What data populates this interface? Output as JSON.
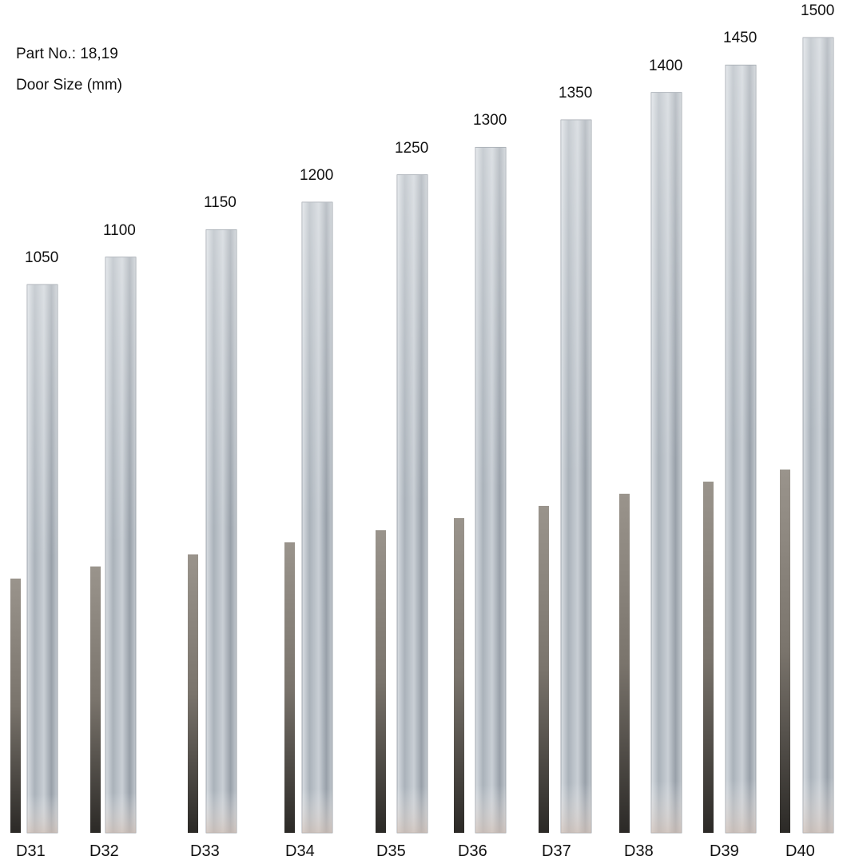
{
  "header": {
    "part_no": "Part No.: 18,19",
    "door_size": "Door Size (mm)"
  },
  "doors": [
    {
      "code": "D31",
      "size": 1050,
      "size_label": "1050"
    },
    {
      "code": "D32",
      "size": 1100,
      "size_label": "1100"
    },
    {
      "code": "D33",
      "size": 1150,
      "size_label": "1150"
    },
    {
      "code": "D34",
      "size": 1200,
      "size_label": "1200"
    },
    {
      "code": "D35",
      "size": 1250,
      "size_label": "1250"
    },
    {
      "code": "D36",
      "size": 1300,
      "size_label": "1300"
    },
    {
      "code": "D37",
      "size": 1350,
      "size_label": "1350"
    },
    {
      "code": "D38",
      "size": 1400,
      "size_label": "1400"
    },
    {
      "code": "D39",
      "size": 1450,
      "size_label": "1450"
    },
    {
      "code": "D40",
      "size": 1500,
      "size_label": "1500"
    }
  ],
  "colors": {
    "flat_bar": "#b9c0c7",
    "flat_bar_dark": "#8e969f",
    "rod": "#6f6a63",
    "rod_dark": "#2e2b28"
  }
}
